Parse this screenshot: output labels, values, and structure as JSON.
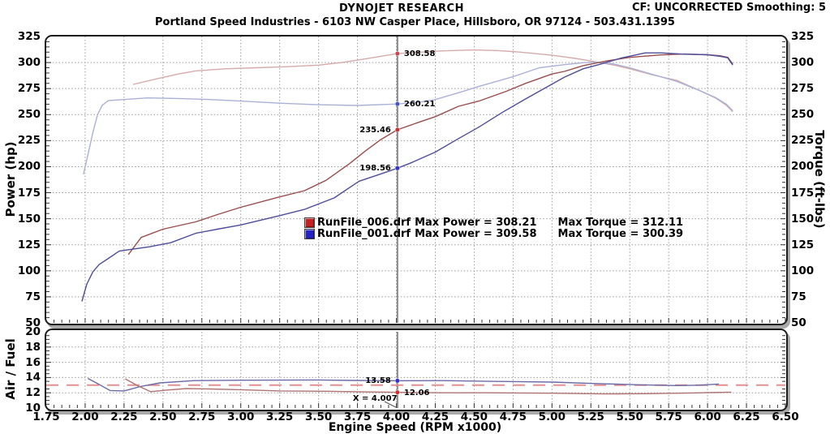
{
  "header": {
    "brand": "DYNOJET RESEARCH",
    "cf": "CF: UNCORRECTED  Smoothing: 5",
    "subtitle": "Portland Speed Industries - 6103 NW Casper Place, Hillsboro, OR 97124 - 503.431.1395"
  },
  "axes": {
    "power_label": "Power (hp)",
    "torque_label": "Torque (ft-lbs)",
    "af_label": "Air / Fuel",
    "x_label": "Engine Speed (RPM x1000)",
    "power_ticks": [
      325,
      300,
      275,
      250,
      225,
      200,
      175,
      150,
      125,
      100,
      75,
      50
    ],
    "torque_ticks": [
      325,
      300,
      275,
      250,
      225,
      200,
      175,
      150,
      125,
      100,
      75,
      50
    ],
    "af_ticks": [
      20,
      18,
      16,
      14,
      12,
      10
    ],
    "x_ticks": [
      "1.75",
      "2.00",
      "2.25",
      "2.50",
      "2.75",
      "3.00",
      "3.25",
      "3.50",
      "3.75",
      "4.00",
      "4.25",
      "4.50",
      "4.75",
      "5.00",
      "5.25",
      "5.50",
      "5.75",
      "6.00",
      "6.25",
      "6.50"
    ]
  },
  "legend": {
    "rows": [
      {
        "file": "RunFile_006.drf",
        "power": "Max Power = 308.21",
        "torque": "Max Torque = 312.11",
        "color": "#c42222"
      },
      {
        "file": "RunFile_001.drf",
        "power": "Max Power = 309.58",
        "torque": "Max Torque = 300.39",
        "color": "#2424c4"
      }
    ]
  },
  "cursor": {
    "x": 4.007,
    "x_label": "X = 4.007",
    "main_labels": [
      {
        "text": "308.58",
        "value": 308.58,
        "side": "right",
        "color": "#cc4455"
      },
      {
        "text": "260.21",
        "value": 260.21,
        "side": "right",
        "color": "#4455cc"
      },
      {
        "text": "235.46",
        "value": 235.46,
        "side": "left",
        "color": "#cc3333"
      },
      {
        "text": "198.56",
        "value": 198.56,
        "side": "left",
        "color": "#3333cc"
      }
    ],
    "af_labels": [
      {
        "text": "13.58",
        "value": 13.58,
        "side": "left",
        "color": "#3333cc"
      },
      {
        "text": "12.06",
        "value": 12.06,
        "side": "right",
        "color": "#cc3333"
      }
    ]
  },
  "chart_data": {
    "type": "line",
    "title": "Dynojet dyno run comparison",
    "x_axis": {
      "label": "Engine Speed (RPM x1000)",
      "min": 1.75,
      "max": 6.5,
      "step": 0.25,
      "grid": true
    },
    "main": {
      "y_left": {
        "label": "Power (hp)",
        "min": 50,
        "max": 325,
        "step": 25
      },
      "y_right": {
        "label": "Torque (ft-lbs)",
        "min": 50,
        "max": 325,
        "step": 25
      },
      "series": [
        {
          "name": "Power RunFile_006.drf",
          "max": 308.21,
          "color": "#9a4d4d",
          "points": [
            [
              2.28,
              116
            ],
            [
              2.36,
              132
            ],
            [
              2.5,
              140
            ],
            [
              2.71,
              147
            ],
            [
              2.85,
              154
            ],
            [
              3.0,
              161
            ],
            [
              3.25,
              171
            ],
            [
              3.41,
              177
            ],
            [
              3.55,
              187
            ],
            [
              3.7,
              203
            ],
            [
              3.8,
              215
            ],
            [
              3.9,
              226
            ],
            [
              4.007,
              235.5
            ],
            [
              4.15,
              243
            ],
            [
              4.25,
              248
            ],
            [
              4.4,
              258
            ],
            [
              4.53,
              263
            ],
            [
              4.7,
              272
            ],
            [
              4.83,
              280
            ],
            [
              5.0,
              289
            ],
            [
              5.08,
              291.5
            ],
            [
              5.2,
              297
            ],
            [
              5.35,
              301.5
            ],
            [
              5.5,
              305
            ],
            [
              5.7,
              307.3
            ],
            [
              5.85,
              308.2
            ],
            [
              6.0,
              307.5
            ],
            [
              6.08,
              306.5
            ],
            [
              6.13,
              305
            ],
            [
              6.16,
              299
            ]
          ]
        },
        {
          "name": "Power RunFile_001.drf",
          "max": 309.58,
          "color": "#4d4d9a",
          "points": [
            [
              1.98,
              71
            ],
            [
              2.01,
              87
            ],
            [
              2.05,
              99
            ],
            [
              2.09,
              106
            ],
            [
              2.13,
              110
            ],
            [
              2.22,
              119
            ],
            [
              2.41,
              123
            ],
            [
              2.55,
              127
            ],
            [
              2.71,
              136
            ],
            [
              2.85,
              140
            ],
            [
              3.0,
              144
            ],
            [
              3.25,
              153
            ],
            [
              3.41,
              159
            ],
            [
              3.6,
              170
            ],
            [
              3.76,
              186
            ],
            [
              3.9,
              193
            ],
            [
              4.007,
              198.6
            ],
            [
              4.1,
              204
            ],
            [
              4.25,
              214
            ],
            [
              4.4,
              227
            ],
            [
              4.53,
              238
            ],
            [
              4.68,
              252
            ],
            [
              4.83,
              265
            ],
            [
              5.08,
              286
            ],
            [
              5.2,
              294
            ],
            [
              5.3,
              298
            ],
            [
              5.45,
              304.5
            ],
            [
              5.6,
              309.3
            ],
            [
              5.7,
              309.3
            ],
            [
              5.85,
              308
            ],
            [
              6.0,
              307.5
            ],
            [
              6.08,
              306
            ],
            [
              6.13,
              304.5
            ],
            [
              6.16,
              298
            ]
          ]
        },
        {
          "name": "Torque RunFile_006.drf",
          "max": 312.11,
          "color": "#d6abab",
          "points": [
            [
              2.31,
              279
            ],
            [
              2.45,
              284
            ],
            [
              2.6,
              289
            ],
            [
              2.71,
              292
            ],
            [
              2.9,
              294
            ],
            [
              3.1,
              295
            ],
            [
              3.3,
              296
            ],
            [
              3.5,
              297.5
            ],
            [
              3.65,
              300
            ],
            [
              3.8,
              303.5
            ],
            [
              3.9,
              306
            ],
            [
              4.007,
              308.6
            ],
            [
              4.15,
              310
            ],
            [
              4.3,
              311.2
            ],
            [
              4.5,
              312.1
            ],
            [
              4.65,
              311.5
            ],
            [
              4.8,
              310
            ],
            [
              5.0,
              307
            ],
            [
              5.15,
              304
            ],
            [
              5.25,
              301.5
            ],
            [
              5.4,
              297.5
            ],
            [
              5.5,
              294
            ],
            [
              5.65,
              288
            ],
            [
              5.8,
              283
            ],
            [
              5.95,
              273
            ],
            [
              6.05,
              266
            ],
            [
              6.12,
              259
            ],
            [
              6.16,
              253
            ]
          ]
        },
        {
          "name": "Torque RunFile_001.drf",
          "max": 300.39,
          "color": "#abb1d6",
          "points": [
            [
              1.99,
              193
            ],
            [
              2.02,
              213
            ],
            [
              2.05,
              233
            ],
            [
              2.08,
              250
            ],
            [
              2.11,
              259
            ],
            [
              2.15,
              263.5
            ],
            [
              2.25,
              264.5
            ],
            [
              2.4,
              266
            ],
            [
              2.6,
              265.5
            ],
            [
              2.8,
              264.5
            ],
            [
              3.0,
              263
            ],
            [
              3.25,
              261
            ],
            [
              3.5,
              259.5
            ],
            [
              3.75,
              258.8
            ],
            [
              4.007,
              260.2
            ],
            [
              4.15,
              262
            ],
            [
              4.25,
              264.5
            ],
            [
              4.4,
              271
            ],
            [
              4.53,
              277
            ],
            [
              4.74,
              286
            ],
            [
              4.92,
              295
            ],
            [
              5.08,
              298
            ],
            [
              5.2,
              299.8
            ],
            [
              5.27,
              300.4
            ],
            [
              5.4,
              298.5
            ],
            [
              5.5,
              295
            ],
            [
              5.65,
              288.5
            ],
            [
              5.8,
              282
            ],
            [
              5.95,
              273
            ],
            [
              6.05,
              266.5
            ],
            [
              6.12,
              260
            ],
            [
              6.16,
              254
            ]
          ]
        }
      ]
    },
    "af": {
      "y": {
        "label": "Air / Fuel",
        "min": 10,
        "max": 20,
        "step": 2
      },
      "series": [
        {
          "name": "AF RunFile_001.drf",
          "color": "#6a6aa8",
          "points": [
            [
              2.02,
              13.85
            ],
            [
              2.08,
              13.2
            ],
            [
              2.16,
              12.3
            ],
            [
              2.25,
              12.25
            ],
            [
              2.35,
              12.8
            ],
            [
              2.48,
              13.3
            ],
            [
              2.7,
              13.6
            ],
            [
              3.0,
              13.65
            ],
            [
              3.5,
              13.68
            ],
            [
              3.75,
              13.62
            ],
            [
              4.007,
              13.58
            ],
            [
              4.3,
              13.6
            ],
            [
              4.6,
              13.5
            ],
            [
              5.0,
              13.4
            ],
            [
              5.3,
              13.2
            ],
            [
              5.55,
              13.05
            ],
            [
              5.8,
              12.95
            ],
            [
              5.95,
              13.0
            ],
            [
              6.07,
              13.15
            ]
          ]
        },
        {
          "name": "AF RunFile_006.drf",
          "color": "#b07474",
          "points": [
            [
              2.26,
              13.8
            ],
            [
              2.34,
              12.9
            ],
            [
              2.42,
              12.15
            ],
            [
              2.52,
              12.35
            ],
            [
              2.65,
              12.55
            ],
            [
              2.8,
              12.5
            ],
            [
              3.0,
              12.4
            ],
            [
              3.25,
              12.25
            ],
            [
              3.55,
              12.2
            ],
            [
              3.8,
              12.12
            ],
            [
              4.007,
              12.06
            ],
            [
              4.3,
              12.0
            ],
            [
              4.6,
              12.0
            ],
            [
              5.0,
              11.95
            ],
            [
              5.33,
              11.85
            ],
            [
              5.6,
              11.88
            ],
            [
              5.9,
              11.98
            ],
            [
              6.15,
              12.08
            ]
          ]
        }
      ],
      "reference_line": {
        "value": 13.0,
        "color": "#e59090",
        "style": "dashed"
      }
    }
  }
}
